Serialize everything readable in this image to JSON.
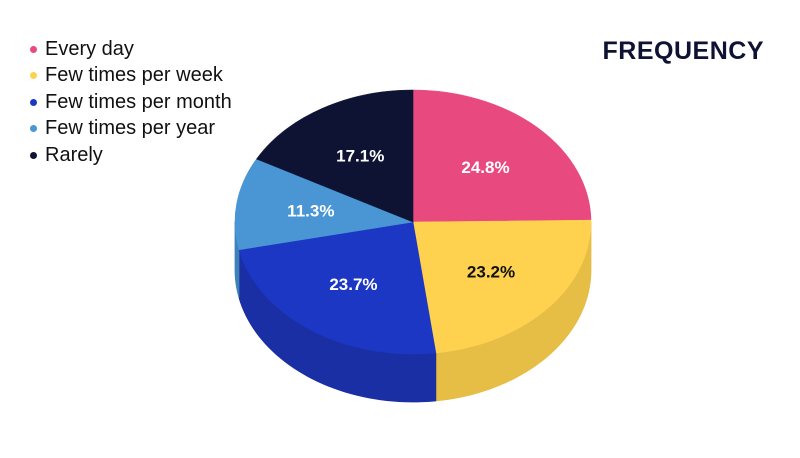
{
  "chart_data": {
    "type": "pie",
    "title": "FREQUENCY",
    "legend_position": "top-left",
    "slices": [
      {
        "label": "Every day",
        "value": 24.8,
        "value_label": "24.8%",
        "color": "#e84a7f",
        "side_color": "#c93e6c",
        "label_color": "#ffffff"
      },
      {
        "label": "Few times per week",
        "value": 23.2,
        "value_label": "23.2%",
        "color": "#fed24e",
        "side_color": "#e6bd45",
        "label_color": "#111111"
      },
      {
        "label": "Few times per month",
        "value": 23.7,
        "value_label": "23.7%",
        "color": "#1c37c4",
        "side_color": "#1a2fa3",
        "label_color": "#ffffff"
      },
      {
        "label": "Few times per year",
        "value": 11.3,
        "value_label": "11.3%",
        "color": "#4a95d3",
        "side_color": "#3f82b9",
        "label_color": "#ffffff"
      },
      {
        "label": "Rarely",
        "value": 17.1,
        "value_label": "17.1%",
        "color": "#0e1333",
        "side_color": "#0a0e28",
        "label_color": "#ffffff"
      }
    ]
  }
}
